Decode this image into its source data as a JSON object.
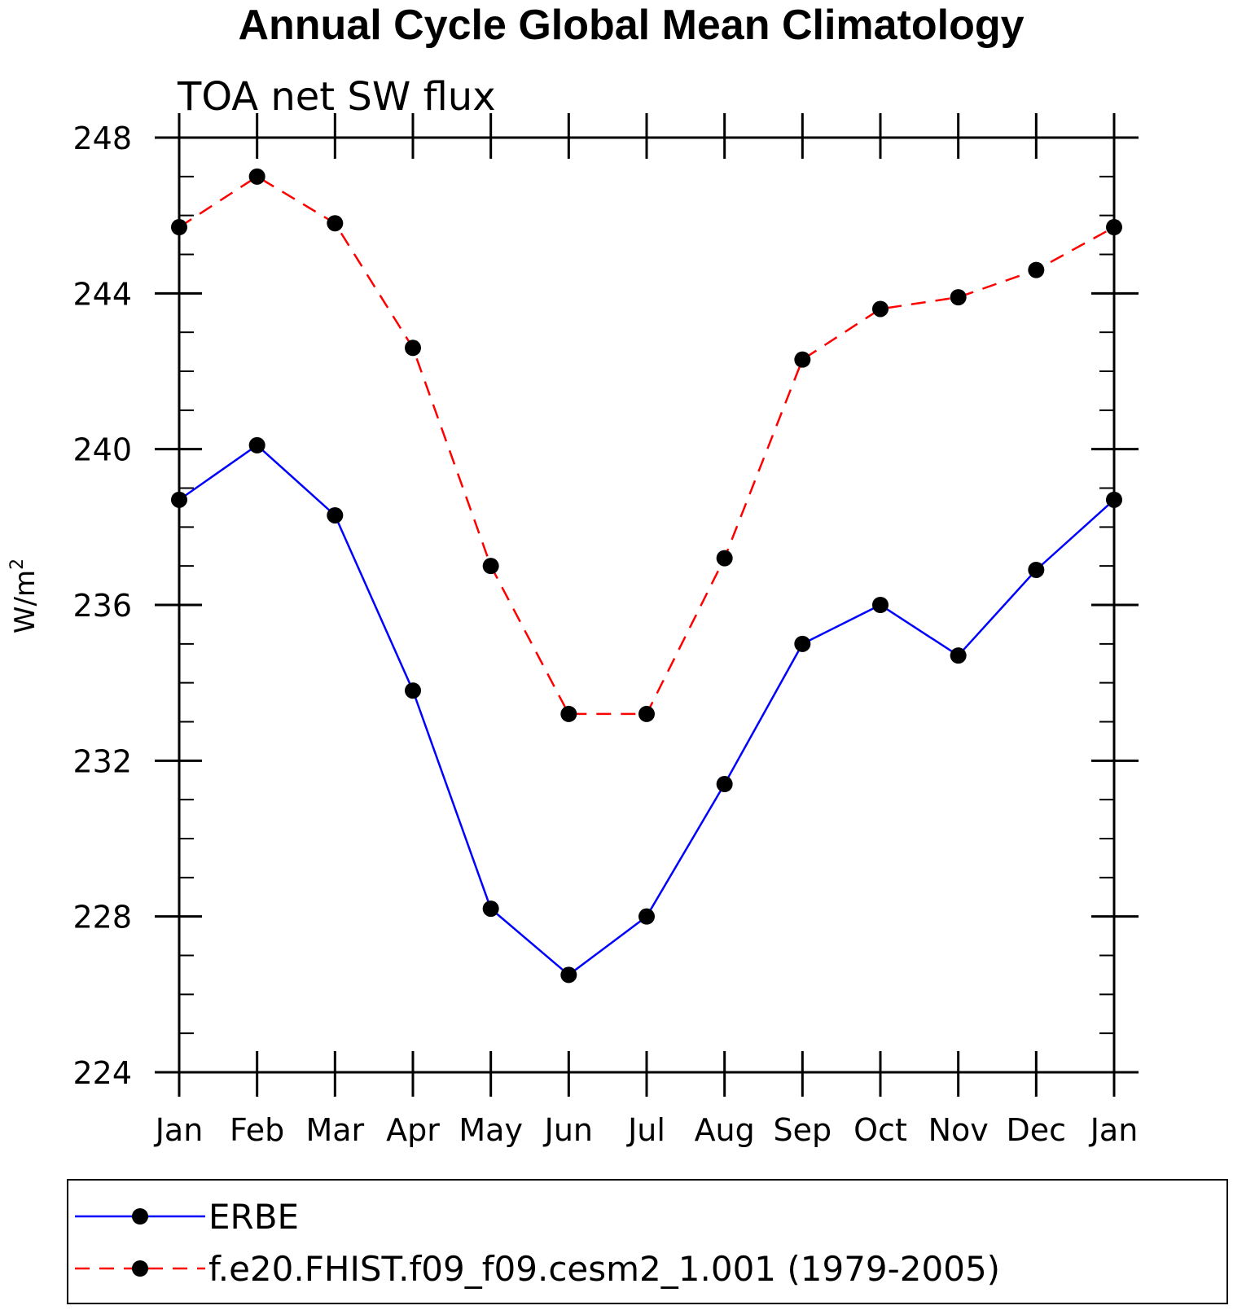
{
  "chart_data": {
    "type": "line",
    "title": "Annual Cycle Global Mean Climatology",
    "subtitle": "TOA net SW flux",
    "ylabel": "W/m",
    "ylabel_superscript": "2",
    "categories": [
      "Jan",
      "Feb",
      "Mar",
      "Apr",
      "May",
      "Jun",
      "Jul",
      "Aug",
      "Sep",
      "Oct",
      "Nov",
      "Dec",
      "Jan"
    ],
    "ylim": [
      224,
      248
    ],
    "yticks": [
      224,
      228,
      232,
      236,
      240,
      244,
      248
    ],
    "grid": false,
    "legend_position": "bottom",
    "series": [
      {
        "name": "ERBE",
        "color": "#0000ff",
        "line_style": "solid",
        "marker": "filled-circle",
        "values": [
          238.7,
          240.1,
          238.3,
          233.8,
          228.2,
          226.5,
          228.0,
          231.4,
          235.0,
          236.0,
          234.7,
          236.9,
          238.7
        ]
      },
      {
        "name": "f.e20.FHIST.f09_f09.cesm2_1.001 (1979-2005)",
        "color": "#ff0000",
        "line_style": "dashed",
        "marker": "filled-circle",
        "values": [
          245.7,
          247.0,
          245.8,
          242.6,
          237.0,
          233.2,
          233.2,
          237.2,
          242.3,
          243.6,
          243.9,
          244.6,
          245.7
        ]
      }
    ]
  }
}
